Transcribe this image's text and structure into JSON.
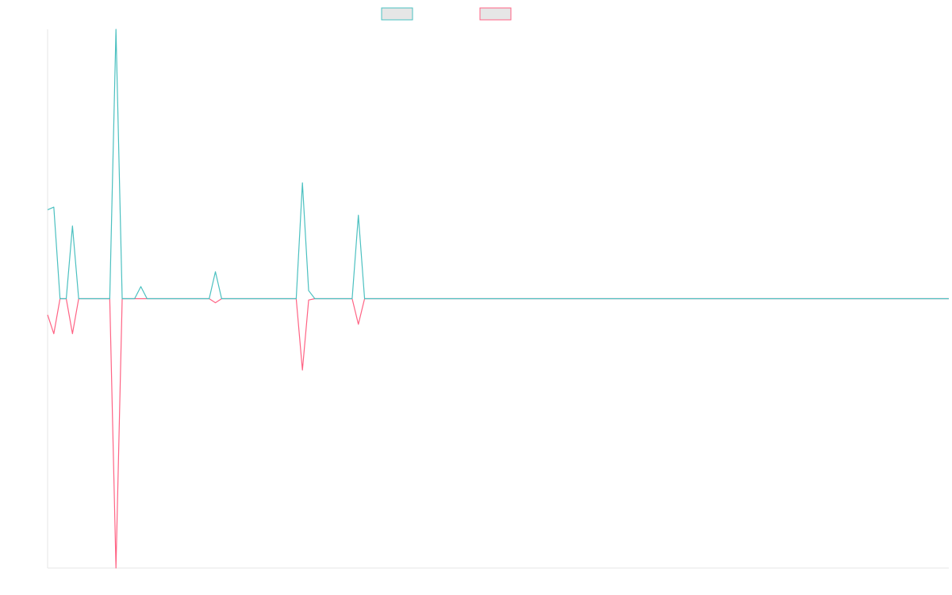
{
  "chart_data": {
    "type": "line",
    "title": "",
    "xlabel": "",
    "ylabel": "",
    "grid": false,
    "legend_position": "top-center",
    "x_count": 146,
    "ylim": [
      -1,
      1
    ],
    "series": [
      {
        "color": "#4bc0c0",
        "fill": "#e6e6e6",
        "spikes": [
          {
            "x": 0,
            "y": 0.33
          },
          {
            "x": 1,
            "y": 0.34
          },
          {
            "x": 4,
            "y": 0.27
          },
          {
            "x": 11,
            "y": 1.0
          },
          {
            "x": 15,
            "y": 0.045
          },
          {
            "x": 27,
            "y": 0.1
          },
          {
            "x": 41,
            "y": 0.43
          },
          {
            "x": 42,
            "y": 0.03
          },
          {
            "x": 50,
            "y": 0.31
          }
        ]
      },
      {
        "color": "#ff6384",
        "fill": "#e6e6e6",
        "spikes": [
          {
            "x": 0,
            "y": -0.06
          },
          {
            "x": 1,
            "y": -0.13
          },
          {
            "x": 4,
            "y": -0.13
          },
          {
            "x": 11,
            "y": -1.0
          },
          {
            "x": 27,
            "y": -0.015
          },
          {
            "x": 41,
            "y": -0.265
          },
          {
            "x": 42,
            "y": -0.005
          },
          {
            "x": 50,
            "y": -0.095
          }
        ]
      }
    ]
  }
}
